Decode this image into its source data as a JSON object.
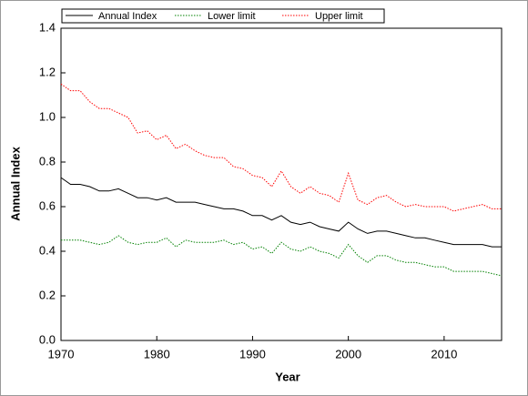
{
  "chart_data": {
    "type": "line",
    "x_label": "Year",
    "y_label": "Annual Index",
    "x": [
      1970,
      1971,
      1972,
      1973,
      1974,
      1975,
      1976,
      1977,
      1978,
      1979,
      1980,
      1981,
      1982,
      1983,
      1984,
      1985,
      1986,
      1987,
      1988,
      1989,
      1990,
      1991,
      1992,
      1993,
      1994,
      1995,
      1996,
      1997,
      1998,
      1999,
      2000,
      2001,
      2002,
      2003,
      2004,
      2005,
      2006,
      2007,
      2008,
      2009,
      2010,
      2011,
      2012,
      2013,
      2014,
      2015,
      2016
    ],
    "xlim": [
      1970,
      2016
    ],
    "xticks": [
      1970,
      1980,
      1990,
      2000,
      2010
    ],
    "ylim": [
      0,
      1.4
    ],
    "yticks": [
      {
        "value": 0,
        "label": "0.0"
      },
      0.2,
      0.4,
      0.6,
      0.8,
      {
        "value": 1,
        "label": "1.0"
      },
      1.2,
      1.4
    ],
    "legend": "top",
    "series": [
      {
        "name": "Annual Index",
        "color": "#000000",
        "dash": "solid",
        "values": [
          0.73,
          0.7,
          0.7,
          0.69,
          0.67,
          0.67,
          0.68,
          0.66,
          0.64,
          0.64,
          0.63,
          0.64,
          0.62,
          0.62,
          0.62,
          0.61,
          0.6,
          0.59,
          0.59,
          0.58,
          0.56,
          0.56,
          0.54,
          0.56,
          0.53,
          0.52,
          0.53,
          0.51,
          0.5,
          0.49,
          0.53,
          0.5,
          0.48,
          0.49,
          0.49,
          0.48,
          0.47,
          0.46,
          0.46,
          0.45,
          0.44,
          0.43,
          0.43,
          0.43,
          0.43,
          0.42,
          0.42
        ]
      },
      {
        "name": "Lower limit",
        "color": "#008000",
        "dash": "dotted",
        "values": [
          0.45,
          0.45,
          0.45,
          0.44,
          0.43,
          0.44,
          0.47,
          0.44,
          0.43,
          0.44,
          0.44,
          0.46,
          0.42,
          0.45,
          0.44,
          0.44,
          0.44,
          0.45,
          0.43,
          0.44,
          0.41,
          0.42,
          0.39,
          0.44,
          0.41,
          0.4,
          0.42,
          0.4,
          0.39,
          0.37,
          0.43,
          0.38,
          0.35,
          0.38,
          0.38,
          0.36,
          0.35,
          0.35,
          0.34,
          0.33,
          0.33,
          0.31,
          0.31,
          0.31,
          0.31,
          0.3,
          0.29
        ]
      },
      {
        "name": "Upper limit",
        "color": "#ff0000",
        "dash": "dotted",
        "values": [
          1.15,
          1.12,
          1.12,
          1.07,
          1.04,
          1.04,
          1.02,
          1.0,
          0.93,
          0.94,
          0.9,
          0.92,
          0.86,
          0.88,
          0.85,
          0.83,
          0.82,
          0.82,
          0.78,
          0.77,
          0.74,
          0.73,
          0.69,
          0.76,
          0.69,
          0.66,
          0.69,
          0.66,
          0.65,
          0.62,
          0.75,
          0.63,
          0.61,
          0.64,
          0.65,
          0.62,
          0.6,
          0.61,
          0.6,
          0.6,
          0.6,
          0.58,
          0.59,
          0.6,
          0.61,
          0.59,
          0.59
        ]
      }
    ]
  }
}
